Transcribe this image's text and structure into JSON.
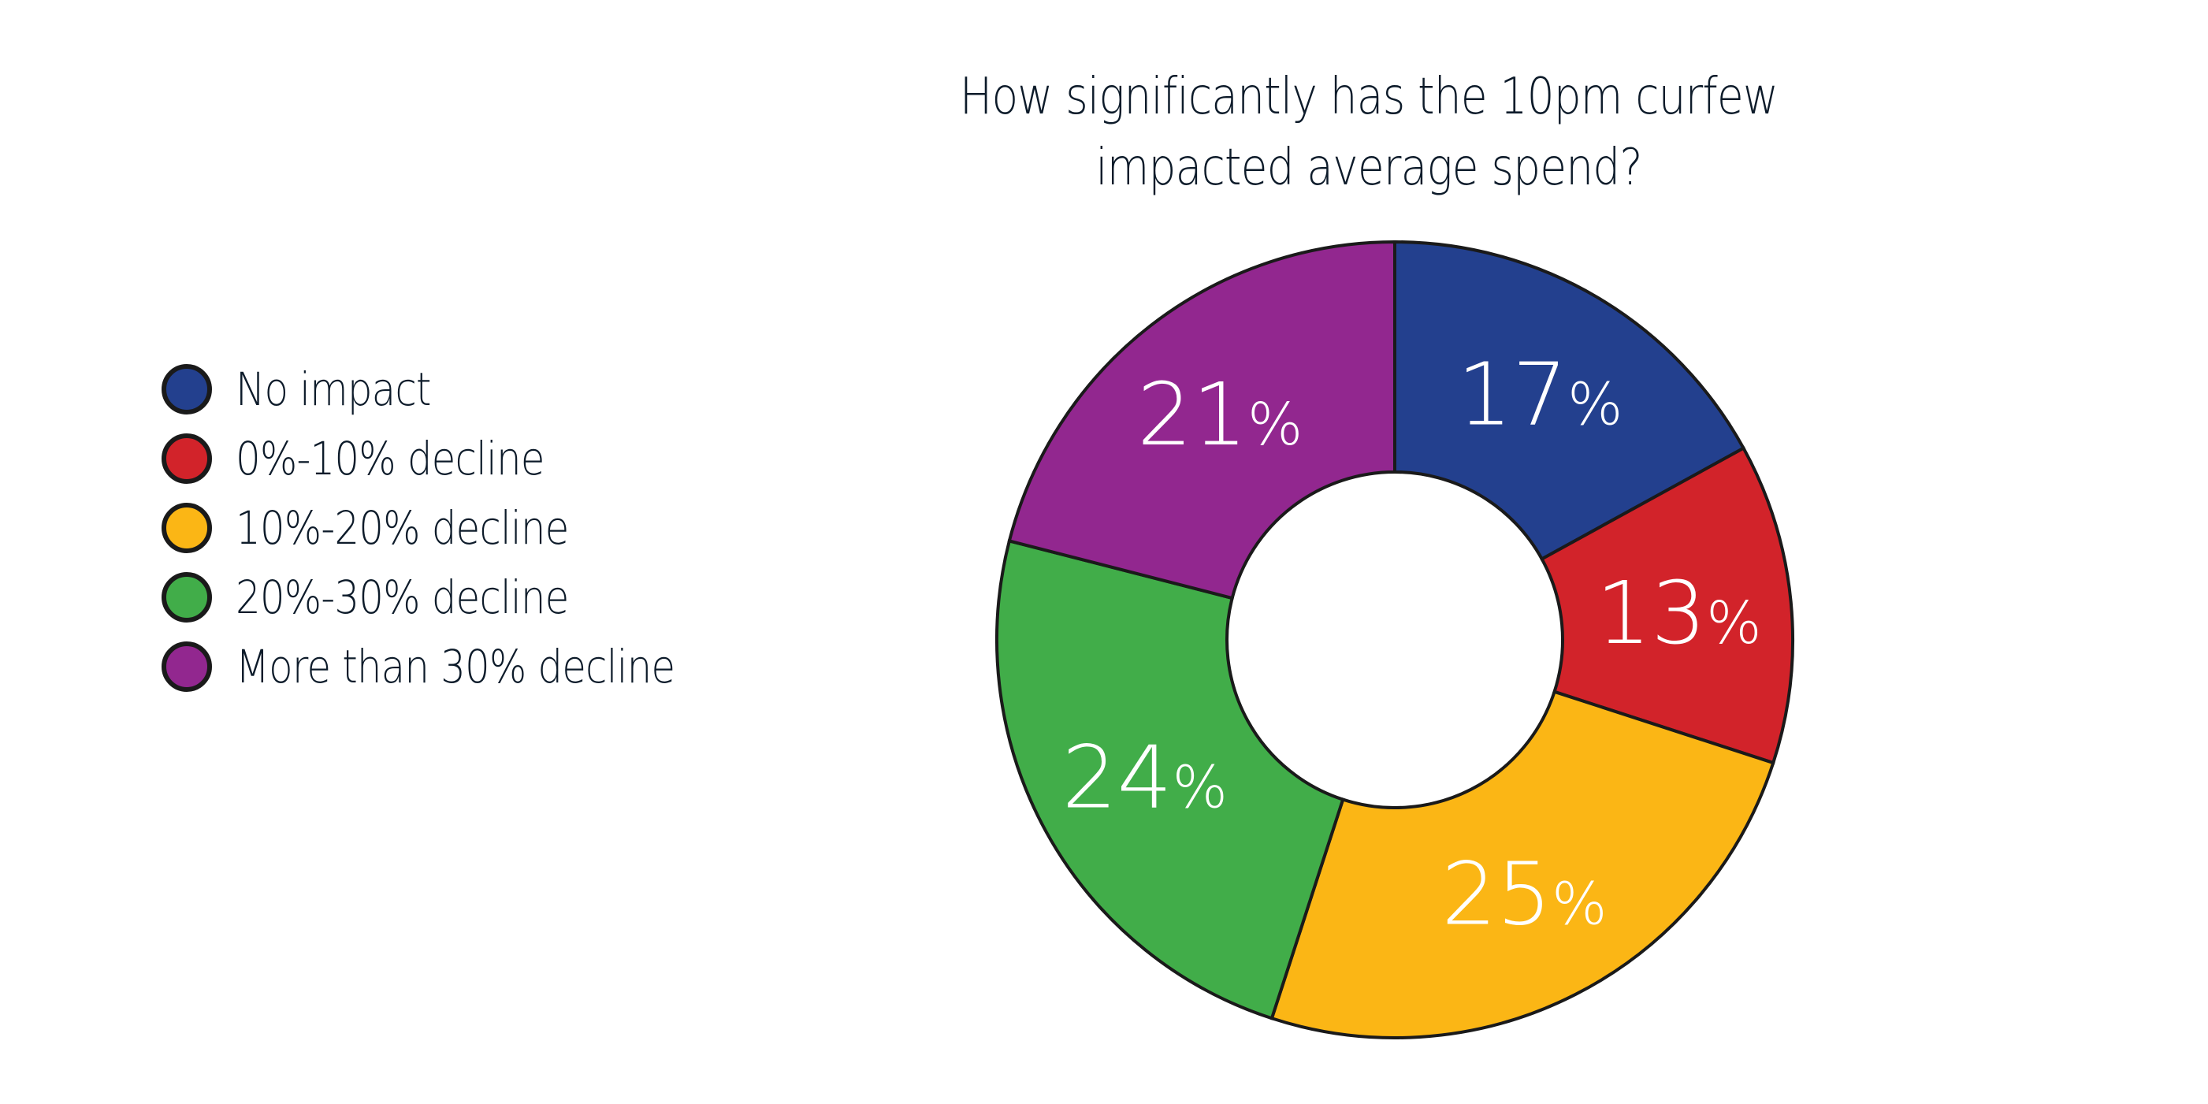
{
  "chart_data": {
    "type": "pie",
    "variant": "donut",
    "title_lines": [
      "How significantly has the 10pm curfew",
      "impacted average spend?"
    ],
    "legend_placement": "left",
    "categories": [
      "No impact",
      "0%-10% decline",
      "10%-20% decline",
      "20%-30% decline",
      "More than 30% decline"
    ],
    "values": [
      17,
      13,
      25,
      24,
      21
    ],
    "labels": [
      "17",
      "13",
      "25",
      "24",
      "21"
    ],
    "label_suffix": "%",
    "colors": [
      "#23408e",
      "#d2232a",
      "#fbb615",
      "#41ad49",
      "#92278f"
    ]
  }
}
